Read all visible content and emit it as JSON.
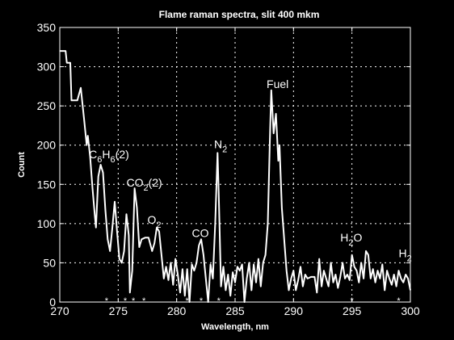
{
  "chart_data": {
    "type": "line",
    "title": "Flame raman spectra, slit 400 mkm",
    "xlabel": "Wavelength,  nm",
    "ylabel": "Count",
    "xlim": [
      270,
      300
    ],
    "ylim": [
      0,
      350
    ],
    "grid": true,
    "x_ticks": [
      270,
      275,
      280,
      285,
      290,
      295,
      300
    ],
    "y_ticks": [
      0,
      50,
      100,
      150,
      200,
      250,
      300,
      350
    ],
    "x_tick_labels": [
      "270",
      "275",
      "280",
      "285",
      "290",
      "295",
      "300"
    ],
    "y_tick_labels": [
      "0",
      "50",
      "100",
      "150",
      "200",
      "250",
      "300",
      "350"
    ],
    "colors": {
      "background": "#000000",
      "line": "#ffffff",
      "grid": "#ffffff"
    },
    "series": [
      {
        "points": [
          [
            270,
            320
          ],
          [
            270.5,
            320
          ],
          [
            270.6,
            305
          ],
          [
            270.9,
            305
          ],
          [
            271.0,
            257
          ],
          [
            271.5,
            257
          ],
          [
            271.8,
            273
          ],
          [
            272.1,
            230
          ],
          [
            272.3,
            200
          ],
          [
            272.4,
            212
          ],
          [
            272.6,
            185
          ],
          [
            272.8,
            145
          ],
          [
            273.0,
            110
          ],
          [
            273.1,
            95
          ],
          [
            273.3,
            160
          ],
          [
            273.5,
            175
          ],
          [
            273.7,
            165
          ],
          [
            273.9,
            118
          ],
          [
            274.1,
            80
          ],
          [
            274.3,
            65
          ],
          [
            274.5,
            95
          ],
          [
            274.7,
            128
          ],
          [
            274.9,
            90
          ],
          [
            275.1,
            55
          ],
          [
            275.3,
            50
          ],
          [
            275.5,
            65
          ],
          [
            275.7,
            112
          ],
          [
            275.9,
            85
          ],
          [
            276.0,
            12
          ],
          [
            276.2,
            40
          ],
          [
            276.4,
            145
          ],
          [
            276.6,
            120
          ],
          [
            276.8,
            70
          ],
          [
            277.0,
            80
          ],
          [
            277.3,
            82
          ],
          [
            277.6,
            82
          ],
          [
            277.9,
            65
          ],
          [
            278.1,
            75
          ],
          [
            278.3,
            95
          ],
          [
            278.5,
            90
          ],
          [
            278.7,
            60
          ],
          [
            278.9,
            30
          ],
          [
            279.1,
            45
          ],
          [
            279.3,
            28
          ],
          [
            279.5,
            50
          ],
          [
            279.7,
            22
          ],
          [
            279.9,
            55
          ],
          [
            280.1,
            35
          ],
          [
            280.3,
            12
          ],
          [
            280.5,
            42
          ],
          [
            280.7,
            8
          ],
          [
            280.9,
            42
          ],
          [
            281.1,
            0
          ],
          [
            281.3,
            48
          ],
          [
            281.5,
            40
          ],
          [
            281.7,
            50
          ],
          [
            281.9,
            72
          ],
          [
            282.1,
            80
          ],
          [
            282.3,
            60
          ],
          [
            282.5,
            30
          ],
          [
            282.7,
            0
          ],
          [
            282.9,
            48
          ],
          [
            283.1,
            30
          ],
          [
            283.3,
            100
          ],
          [
            283.5,
            190
          ],
          [
            283.6,
            140
          ],
          [
            283.8,
            20
          ],
          [
            284.0,
            45
          ],
          [
            284.2,
            15
          ],
          [
            284.4,
            35
          ],
          [
            284.6,
            8
          ],
          [
            284.8,
            38
          ],
          [
            285.0,
            25
          ],
          [
            285.2,
            45
          ],
          [
            285.4,
            40
          ],
          [
            285.6,
            48
          ],
          [
            285.8,
            0
          ],
          [
            286.0,
            30
          ],
          [
            286.2,
            50
          ],
          [
            286.4,
            15
          ],
          [
            286.6,
            48
          ],
          [
            286.8,
            25
          ],
          [
            287.0,
            55
          ],
          [
            287.2,
            20
          ],
          [
            287.4,
            50
          ],
          [
            287.6,
            60
          ],
          [
            287.8,
            100
          ],
          [
            288.0,
            220
          ],
          [
            288.1,
            270
          ],
          [
            288.3,
            215
          ],
          [
            288.5,
            240
          ],
          [
            288.7,
            180
          ],
          [
            288.8,
            200
          ],
          [
            289.0,
            120
          ],
          [
            289.2,
            80
          ],
          [
            289.4,
            40
          ],
          [
            289.6,
            15
          ],
          [
            289.8,
            30
          ],
          [
            290.0,
            40
          ],
          [
            290.2,
            15
          ],
          [
            290.4,
            28
          ],
          [
            290.6,
            45
          ],
          [
            290.8,
            20
          ],
          [
            291.0,
            35
          ],
          [
            291.2,
            30
          ],
          [
            291.5,
            32
          ],
          [
            291.8,
            32
          ],
          [
            292.0,
            12
          ],
          [
            292.2,
            55
          ],
          [
            292.4,
            20
          ],
          [
            292.6,
            40
          ],
          [
            292.8,
            30
          ],
          [
            293.0,
            20
          ],
          [
            293.2,
            50
          ],
          [
            293.4,
            25
          ],
          [
            293.6,
            35
          ],
          [
            293.8,
            18
          ],
          [
            294.0,
            32
          ],
          [
            294.2,
            50
          ],
          [
            294.4,
            30
          ],
          [
            294.6,
            35
          ],
          [
            294.8,
            28
          ],
          [
            295.0,
            60
          ],
          [
            295.2,
            45
          ],
          [
            295.4,
            40
          ],
          [
            295.6,
            25
          ],
          [
            295.8,
            50
          ],
          [
            296.0,
            30
          ],
          [
            296.2,
            65
          ],
          [
            296.4,
            60
          ],
          [
            296.6,
            30
          ],
          [
            296.8,
            42
          ],
          [
            297.0,
            25
          ],
          [
            297.2,
            40
          ],
          [
            297.4,
            30
          ],
          [
            297.6,
            48
          ],
          [
            297.8,
            15
          ],
          [
            298.0,
            40
          ],
          [
            298.2,
            30
          ],
          [
            298.4,
            22
          ],
          [
            298.6,
            35
          ],
          [
            298.8,
            20
          ],
          [
            299.0,
            40
          ],
          [
            299.2,
            30
          ],
          [
            299.4,
            25
          ],
          [
            299.6,
            35
          ],
          [
            299.8,
            30
          ],
          [
            300.0,
            15
          ]
        ]
      }
    ],
    "annotations": [
      {
        "segments": [
          {
            "t": "C",
            "sub": false
          },
          {
            "t": "6",
            "sub": true
          },
          {
            "t": "H",
            "sub": false
          },
          {
            "t": "6",
            "sub": true
          },
          {
            "t": "(2)",
            "sub": false
          }
        ],
        "x": 272.5,
        "y": 183
      },
      {
        "segments": [
          {
            "t": "CO",
            "sub": false
          },
          {
            "t": "2",
            "sub": true
          },
          {
            "t": "(2)",
            "sub": false
          }
        ],
        "x": 275.7,
        "y": 147
      },
      {
        "segments": [
          {
            "t": "O",
            "sub": false
          },
          {
            "t": "2",
            "sub": true
          }
        ],
        "x": 277.5,
        "y": 100
      },
      {
        "segments": [
          {
            "t": "CO",
            "sub": false
          }
        ],
        "x": 281.3,
        "y": 83
      },
      {
        "segments": [
          {
            "t": "N",
            "sub": false
          },
          {
            "t": "2",
            "sub": true
          }
        ],
        "x": 283.2,
        "y": 196
      },
      {
        "segments": [
          {
            "t": "Fuel",
            "sub": false
          }
        ],
        "x": 287.7,
        "y": 273
      },
      {
        "segments": [
          {
            "t": "H",
            "sub": false
          },
          {
            "t": "2",
            "sub": true
          },
          {
            "t": "O",
            "sub": false
          }
        ],
        "x": 294.0,
        "y": 77
      },
      {
        "segments": [
          {
            "t": "H",
            "sub": false
          },
          {
            "t": "2",
            "sub": true
          }
        ],
        "x": 299.0,
        "y": 57
      }
    ],
    "markers": {
      "symbol": "*",
      "x": [
        274.0,
        275.6,
        276.3,
        277.2,
        280.9,
        282.1,
        283.6,
        295.0,
        299.0
      ]
    }
  }
}
